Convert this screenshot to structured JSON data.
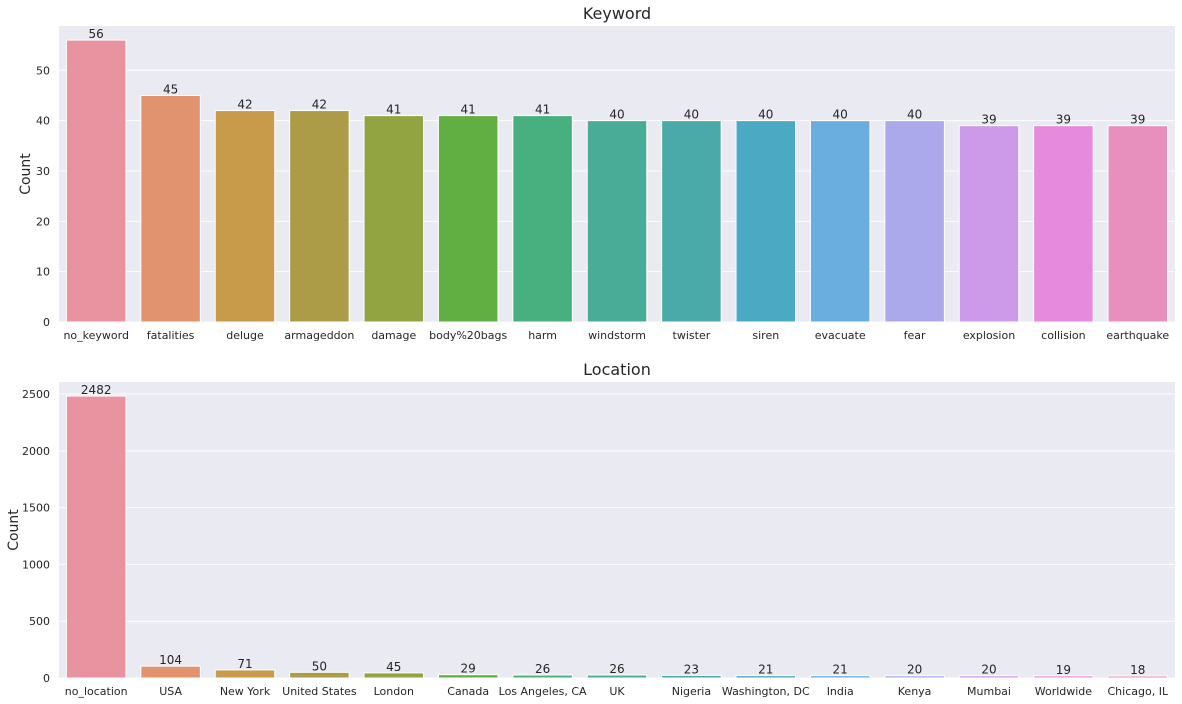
{
  "chart_data": [
    {
      "type": "bar",
      "title": "Keyword",
      "xlabel": "",
      "ylabel": "Count",
      "ylim": [
        0,
        58.8
      ],
      "yticks": [
        0,
        10,
        20,
        30,
        40,
        50
      ],
      "grid": true,
      "data_labels": true,
      "categories": [
        "no_keyword",
        "fatalities",
        "deluge",
        "armageddon",
        "damage",
        "body%20bags",
        "harm",
        "windstorm",
        "twister",
        "siren",
        "evacuate",
        "fear",
        "explosion",
        "collision",
        "earthquake"
      ],
      "values": [
        56,
        45,
        42,
        42,
        41,
        41,
        41,
        40,
        40,
        40,
        40,
        40,
        39,
        39,
        39
      ],
      "colors": [
        "#e8939f",
        "#e19370",
        "#c79b4a",
        "#ad9c47",
        "#92a442",
        "#61ae43",
        "#47b07e",
        "#49ac96",
        "#4aaaa9",
        "#4ba9c4",
        "#6aaee0",
        "#aba8ec",
        "#cc9ae8",
        "#e68ade",
        "#e78fbd"
      ]
    },
    {
      "type": "bar",
      "title": "Location",
      "xlabel": "",
      "ylabel": "Count",
      "ylim": [
        0,
        2606
      ],
      "yticks": [
        0,
        500,
        1000,
        1500,
        2000,
        2500
      ],
      "grid": true,
      "data_labels": true,
      "categories": [
        "no_location",
        "USA",
        "New York",
        "United States",
        "London",
        "Canada",
        "Los Angeles, CA",
        "UK",
        "Nigeria",
        "Washington, DC",
        "India",
        "Kenya",
        "Mumbai",
        "Worldwide",
        "Chicago, IL"
      ],
      "values": [
        2482,
        104,
        71,
        50,
        45,
        29,
        26,
        26,
        23,
        21,
        21,
        20,
        20,
        19,
        18
      ],
      "colors": [
        "#e8939f",
        "#e19370",
        "#c79b4a",
        "#ad9c47",
        "#92a442",
        "#61ae43",
        "#47b07e",
        "#49ac96",
        "#4aaaa9",
        "#4ba9c4",
        "#6aaee0",
        "#aba8ec",
        "#cc9ae8",
        "#e68ade",
        "#e78fbd"
      ]
    }
  ]
}
